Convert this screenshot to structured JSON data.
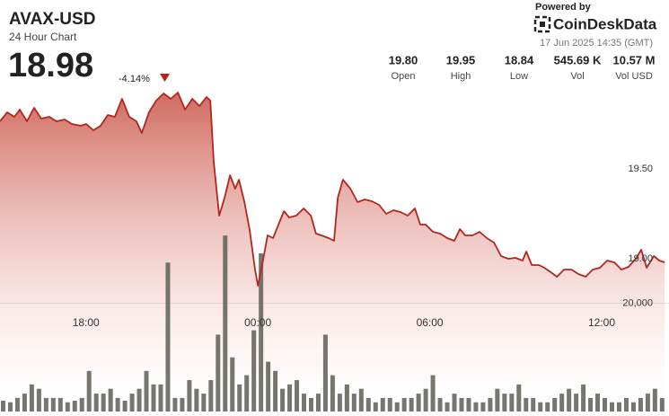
{
  "header": {
    "symbol": "AVAX-USD",
    "subtitle": "24 Hour Chart",
    "price": "18.98",
    "change": "-4.14%",
    "powered_by": "Powered by",
    "brand": "CoinDeskData",
    "timestamp": "17 Jun 2025 14:35 (GMT)",
    "stats": [
      {
        "value": "19.80",
        "label": "Open"
      },
      {
        "value": "19.95",
        "label": "High"
      },
      {
        "value": "18.84",
        "label": "Low"
      },
      {
        "value": "545.69 K",
        "label": "Vol"
      },
      {
        "value": "10.57 M",
        "label": "Vol USD"
      }
    ]
  },
  "chart_data": {
    "type": "line",
    "xlim": [
      15,
      38.35
    ],
    "xticks": [
      {
        "value": 18,
        "label": "18:00"
      },
      {
        "value": 24,
        "label": "00:00"
      },
      {
        "value": 30,
        "label": "06:00"
      },
      {
        "value": 36,
        "label": "12:00"
      }
    ],
    "ylim": [
      18.15,
      20.44
    ],
    "yticks": [
      {
        "value": 19.0,
        "label": "19.00"
      },
      {
        "value": 19.5,
        "label": "19.50"
      }
    ],
    "y2lim": [
      0,
      76000
    ],
    "y2ticks": [
      {
        "value": 20000,
        "label": "20,000"
      }
    ],
    "grid": true,
    "series": [
      {
        "type": "line",
        "color": "#b3261e",
        "area": true,
        "x": [
          15.0,
          15.25,
          15.5,
          15.69,
          15.94,
          16.19,
          16.44,
          16.72,
          16.97,
          17.26,
          17.51,
          17.82,
          18.01,
          18.26,
          18.51,
          18.76,
          19.01,
          19.26,
          19.51,
          19.76,
          19.95,
          20.2,
          20.45,
          20.71,
          20.96,
          21.21,
          21.46,
          21.71,
          21.96,
          22.21,
          22.34,
          22.46,
          22.65,
          22.84,
          23.03,
          23.21,
          23.34,
          23.53,
          23.71,
          23.9,
          24.0,
          24.15,
          24.34,
          24.53,
          24.72,
          24.91,
          25.09,
          25.34,
          25.6,
          25.85,
          26.03,
          26.22,
          26.47,
          26.66,
          26.79,
          26.97,
          27.23,
          27.48,
          27.73,
          27.98,
          28.23,
          28.48,
          28.73,
          28.98,
          29.23,
          29.48,
          29.67,
          29.86,
          30.11,
          30.36,
          30.61,
          30.86,
          31.05,
          31.24,
          31.49,
          31.74,
          31.99,
          32.24,
          32.49,
          32.74,
          32.99,
          33.24,
          33.37,
          33.56,
          33.81,
          34.0,
          34.18,
          34.44,
          34.69,
          34.94,
          35.19,
          35.44,
          35.69,
          35.94,
          36.19,
          36.44,
          36.69,
          36.94,
          37.19,
          37.38,
          37.57,
          37.82,
          38.01,
          38.2
        ],
        "values": [
          19.765,
          19.815,
          19.79,
          19.83,
          19.765,
          19.84,
          19.78,
          19.79,
          19.765,
          19.775,
          19.75,
          19.74,
          19.75,
          19.715,
          19.74,
          19.8,
          19.79,
          19.89,
          19.79,
          19.765,
          19.7,
          19.815,
          19.88,
          19.92,
          19.89,
          19.925,
          19.83,
          19.89,
          19.85,
          19.9,
          19.88,
          19.54,
          19.24,
          19.34,
          19.465,
          19.39,
          19.44,
          19.315,
          19.165,
          18.94,
          18.85,
          18.965,
          19.13,
          19.115,
          19.19,
          19.265,
          19.23,
          19.24,
          19.28,
          19.24,
          19.14,
          19.13,
          19.115,
          19.1,
          19.34,
          19.44,
          19.39,
          19.315,
          19.33,
          19.32,
          19.3,
          19.25,
          19.27,
          19.26,
          19.24,
          19.28,
          19.19,
          19.19,
          19.15,
          19.14,
          19.115,
          19.1,
          19.165,
          19.13,
          19.13,
          19.15,
          19.115,
          19.09,
          19.015,
          19.0,
          19.005,
          18.99,
          19.04,
          18.965,
          18.965,
          18.95,
          18.93,
          18.9,
          18.94,
          18.94,
          18.915,
          18.9,
          18.94,
          18.95,
          18.99,
          18.98,
          18.94,
          18.955,
          19.0,
          19.05,
          18.95,
          19.015,
          18.99,
          18.98
        ]
      },
      {
        "type": "bar",
        "axis": "y2",
        "color": "#5e5e58",
        "x": [
          15,
          15.25,
          15.5,
          15.75,
          16,
          16.25,
          16.5,
          16.75,
          17,
          17.25,
          17.5,
          17.75,
          18,
          18.25,
          18.5,
          18.75,
          19,
          19.25,
          19.5,
          19.75,
          20,
          20.25,
          20.5,
          20.75,
          21,
          21.25,
          21.5,
          21.75,
          22,
          22.25,
          22.5,
          22.75,
          23,
          23.25,
          23.5,
          23.75,
          24,
          24.25,
          24.5,
          24.75,
          25,
          25.25,
          25.5,
          25.75,
          26,
          26.25,
          26.5,
          26.75,
          27,
          27.25,
          27.5,
          27.75,
          28,
          28.25,
          28.5,
          28.75,
          29,
          29.25,
          29.5,
          29.75,
          30,
          30.25,
          30.5,
          30.75,
          31,
          31.25,
          31.5,
          31.75,
          32,
          32.25,
          32.5,
          32.75,
          33,
          33.25,
          33.5,
          33.75,
          34,
          34.25,
          34.5,
          34.75,
          35,
          35.25,
          35.5,
          35.75,
          36,
          36.25,
          36.5,
          36.75,
          37,
          37.25,
          37.5,
          37.75,
          38
        ],
        "values": [
          2000,
          1700,
          2500,
          3300,
          5000,
          4200,
          2500,
          2500,
          2500,
          1700,
          2000,
          2500,
          7500,
          3300,
          3300,
          4200,
          2500,
          2000,
          3300,
          4200,
          7500,
          5000,
          5000,
          27500,
          2500,
          2500,
          5800,
          4200,
          3300,
          5800,
          14200,
          32500,
          10000,
          5000,
          6700,
          15000,
          29200,
          9200,
          7500,
          4200,
          5000,
          5800,
          3300,
          2500,
          3300,
          14200,
          6700,
          3300,
          5000,
          3300,
          4200,
          2500,
          1700,
          2500,
          2500,
          1700,
          2500,
          2500,
          3300,
          4200,
          6700,
          2500,
          1700,
          3300,
          2500,
          2500,
          1700,
          1700,
          2500,
          4200,
          3300,
          3300,
          5000,
          2500,
          2500,
          1700,
          1700,
          2500,
          3300,
          4200,
          3300,
          5000,
          2500,
          3300,
          2500,
          1700,
          1700,
          2500,
          1700,
          2500,
          3300,
          4200,
          2500
        ]
      }
    ]
  }
}
